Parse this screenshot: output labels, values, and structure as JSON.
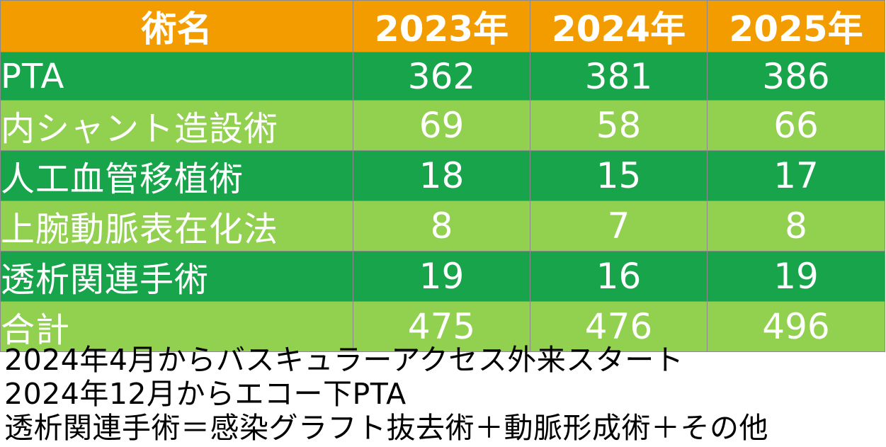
{
  "table": {
    "headers": [
      "術名",
      "2023年",
      "2024年",
      "2025年"
    ],
    "rows": [
      {
        "name": "PTA",
        "values": [
          "362",
          "381",
          "386"
        ]
      },
      {
        "name": "内シャント造設術",
        "values": [
          "69",
          "58",
          "66"
        ]
      },
      {
        "name": "人工血管移植術",
        "values": [
          "18",
          "15",
          "17"
        ]
      },
      {
        "name": "上腕動脈表在化法",
        "values": [
          "8",
          "7",
          "8"
        ]
      },
      {
        "name": "透析関連手術",
        "values": [
          "19",
          "16",
          "19"
        ]
      },
      {
        "name": "合計",
        "values": [
          "475",
          "476",
          "496"
        ]
      }
    ]
  },
  "notes": [
    "2024年4月からバスキュラーアクセス外来スタート",
    "2024年12月からエコー下PTA",
    "透析関連手術＝感染グラフト抜去術＋動脈形成術＋その他"
  ],
  "colors": {
    "header": "#f39c00",
    "row_dark": "#17a44a",
    "row_light": "#92d050",
    "text_on_cells": "#ffffff"
  }
}
